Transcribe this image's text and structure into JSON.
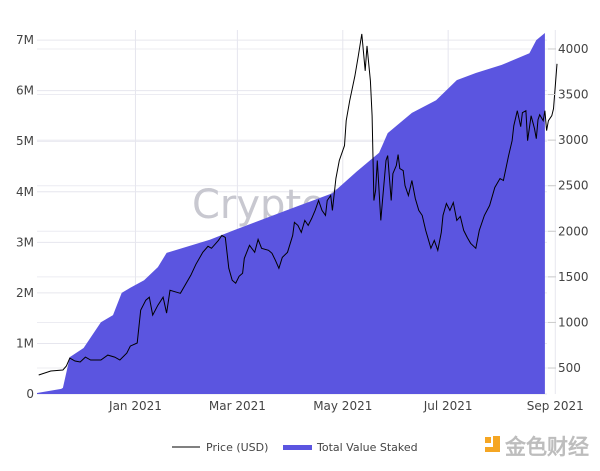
{
  "chart_data": {
    "type": "area+line",
    "title": "",
    "xlabel": "",
    "ylabel_left": "",
    "ylabel_right": "",
    "x_range": [
      "2020-11-05",
      "2021-09-02"
    ],
    "x_ticks": [
      {
        "date": "2021-01-01",
        "label": "Jan 2021"
      },
      {
        "date": "2021-03-01",
        "label": "Mar 2021"
      },
      {
        "date": "2021-05-01",
        "label": "May 2021"
      },
      {
        "date": "2021-07-01",
        "label": "Jul 2021"
      },
      {
        "date": "2021-09-01",
        "label": "Sep 2021"
      }
    ],
    "y_left": {
      "range": [
        0,
        7200000
      ],
      "ticks": [
        0,
        1000000,
        2000000,
        3000000,
        4000000,
        5000000,
        6000000,
        7000000
      ],
      "tick_labels": [
        "0",
        "1M",
        "2M",
        "3M",
        "4M",
        "5M",
        "6M",
        "7M"
      ]
    },
    "y_right": {
      "range": [
        215,
        4208
      ],
      "ticks": [
        500,
        1000,
        1500,
        2000,
        2500,
        3000,
        3500,
        4000
      ],
      "tick_labels": [
        "500",
        "1000",
        "1500",
        "2000",
        "2500",
        "3000",
        "3500",
        "4000"
      ]
    },
    "grid": true,
    "legend_position": "bottom",
    "series": [
      {
        "name": "Price (USD)",
        "type": "line",
        "axis": "right",
        "color": "#000000",
        "points": [
          [
            "2020-11-06",
            423
          ],
          [
            "2020-11-13",
            467
          ],
          [
            "2020-11-20",
            478
          ],
          [
            "2020-11-22",
            522
          ],
          [
            "2020-11-24",
            609
          ],
          [
            "2020-11-27",
            577
          ],
          [
            "2020-11-30",
            566
          ],
          [
            "2020-12-03",
            620
          ],
          [
            "2020-12-06",
            588
          ],
          [
            "2020-12-12",
            588
          ],
          [
            "2020-12-16",
            642
          ],
          [
            "2020-12-20",
            620
          ],
          [
            "2020-12-23",
            588
          ],
          [
            "2020-12-27",
            664
          ],
          [
            "2020-12-29",
            741
          ],
          [
            "2021-01-02",
            774
          ],
          [
            "2021-01-04",
            1135
          ],
          [
            "2021-01-07",
            1244
          ],
          [
            "2021-01-09",
            1277
          ],
          [
            "2021-01-11",
            1080
          ],
          [
            "2021-01-14",
            1189
          ],
          [
            "2021-01-17",
            1277
          ],
          [
            "2021-01-19",
            1102
          ],
          [
            "2021-01-21",
            1353
          ],
          [
            "2021-01-25",
            1331
          ],
          [
            "2021-01-27",
            1320
          ],
          [
            "2021-02-02",
            1517
          ],
          [
            "2021-02-05",
            1638
          ],
          [
            "2021-02-09",
            1769
          ],
          [
            "2021-02-12",
            1835
          ],
          [
            "2021-02-14",
            1813
          ],
          [
            "2021-02-18",
            1900
          ],
          [
            "2021-02-20",
            1955
          ],
          [
            "2021-02-22",
            1933
          ],
          [
            "2021-02-24",
            1594
          ],
          [
            "2021-02-26",
            1463
          ],
          [
            "2021-02-28",
            1430
          ],
          [
            "2021-03-02",
            1506
          ],
          [
            "2021-03-04",
            1539
          ],
          [
            "2021-03-05",
            1703
          ],
          [
            "2021-03-08",
            1846
          ],
          [
            "2021-03-11",
            1769
          ],
          [
            "2021-03-13",
            1911
          ],
          [
            "2021-03-15",
            1813
          ],
          [
            "2021-03-19",
            1791
          ],
          [
            "2021-03-21",
            1758
          ],
          [
            "2021-03-23",
            1682
          ],
          [
            "2021-03-25",
            1594
          ],
          [
            "2021-03-27",
            1714
          ],
          [
            "2021-03-30",
            1769
          ],
          [
            "2021-04-02",
            1955
          ],
          [
            "2021-04-03",
            2097
          ],
          [
            "2021-04-05",
            2064
          ],
          [
            "2021-04-07",
            1988
          ],
          [
            "2021-04-09",
            2119
          ],
          [
            "2021-04-11",
            2064
          ],
          [
            "2021-04-13",
            2141
          ],
          [
            "2021-04-15",
            2229
          ],
          [
            "2021-04-17",
            2338
          ],
          [
            "2021-04-19",
            2229
          ],
          [
            "2021-04-21",
            2174
          ],
          [
            "2021-04-22",
            2338
          ],
          [
            "2021-04-24",
            2393
          ],
          [
            "2021-04-25",
            2229
          ],
          [
            "2021-04-27",
            2579
          ],
          [
            "2021-04-29",
            2776
          ],
          [
            "2021-05-02",
            2940
          ],
          [
            "2021-05-03",
            3213
          ],
          [
            "2021-05-05",
            3432
          ],
          [
            "2021-05-08",
            3705
          ],
          [
            "2021-05-10",
            3924
          ],
          [
            "2021-05-12",
            4165
          ],
          [
            "2021-05-14",
            3760
          ],
          [
            "2021-05-15",
            4034
          ],
          [
            "2021-05-17",
            3651
          ],
          [
            "2021-05-18",
            3268
          ],
          [
            "2021-05-19",
            2338
          ],
          [
            "2021-05-20",
            2447
          ],
          [
            "2021-05-21",
            2776
          ],
          [
            "2021-05-23",
            2119
          ],
          [
            "2021-05-24",
            2338
          ],
          [
            "2021-05-26",
            2776
          ],
          [
            "2021-05-27",
            2830
          ],
          [
            "2021-05-29",
            2338
          ],
          [
            "2021-05-30",
            2633
          ],
          [
            "2021-06-01",
            2721
          ],
          [
            "2021-06-02",
            2841
          ],
          [
            "2021-06-03",
            2688
          ],
          [
            "2021-06-05",
            2666
          ],
          [
            "2021-06-06",
            2502
          ],
          [
            "2021-06-08",
            2393
          ],
          [
            "2021-06-10",
            2557
          ],
          [
            "2021-06-12",
            2360
          ],
          [
            "2021-06-14",
            2229
          ],
          [
            "2021-06-16",
            2174
          ],
          [
            "2021-06-18",
            2010
          ],
          [
            "2021-06-20",
            1878
          ],
          [
            "2021-06-21",
            1813
          ],
          [
            "2021-06-23",
            1900
          ],
          [
            "2021-06-25",
            1791
          ],
          [
            "2021-06-27",
            1988
          ],
          [
            "2021-06-28",
            2174
          ],
          [
            "2021-06-30",
            2305
          ],
          [
            "2021-07-02",
            2229
          ],
          [
            "2021-07-04",
            2316
          ],
          [
            "2021-07-06",
            2119
          ],
          [
            "2021-07-08",
            2163
          ],
          [
            "2021-07-10",
            2010
          ],
          [
            "2021-07-12",
            1933
          ],
          [
            "2021-07-14",
            1868
          ],
          [
            "2021-07-17",
            1813
          ],
          [
            "2021-07-19",
            2010
          ],
          [
            "2021-07-22",
            2174
          ],
          [
            "2021-07-25",
            2283
          ],
          [
            "2021-07-28",
            2480
          ],
          [
            "2021-07-31",
            2579
          ],
          [
            "2021-08-02",
            2557
          ],
          [
            "2021-08-05",
            2830
          ],
          [
            "2021-08-07",
            2994
          ],
          [
            "2021-08-08",
            3158
          ],
          [
            "2021-08-10",
            3323
          ],
          [
            "2021-08-12",
            3147
          ],
          [
            "2021-08-13",
            3301
          ],
          [
            "2021-08-15",
            3323
          ],
          [
            "2021-08-16",
            2994
          ],
          [
            "2021-08-18",
            3268
          ],
          [
            "2021-08-20",
            3126
          ],
          [
            "2021-08-21",
            3016
          ],
          [
            "2021-08-22",
            3224
          ],
          [
            "2021-08-23",
            3279
          ],
          [
            "2021-08-25",
            3213
          ],
          [
            "2021-08-26",
            3323
          ],
          [
            "2021-08-27",
            3104
          ],
          [
            "2021-08-28",
            3213
          ],
          [
            "2021-08-30",
            3268
          ],
          [
            "2021-08-31",
            3344
          ],
          [
            "2021-09-01",
            3596
          ],
          [
            "2021-09-02",
            3837
          ]
        ]
      },
      {
        "name": "Total Value Staked",
        "type": "area",
        "axis": "left",
        "color": "#5b55e0",
        "points": [
          [
            "2020-11-05",
            20000
          ],
          [
            "2020-11-19",
            100000
          ],
          [
            "2020-11-20",
            120000
          ],
          [
            "2020-11-24",
            730000
          ],
          [
            "2020-12-02",
            910000
          ],
          [
            "2020-12-12",
            1420000
          ],
          [
            "2020-12-19",
            1560000
          ],
          [
            "2020-12-24",
            2000000
          ],
          [
            "2020-12-29",
            2100000
          ],
          [
            "2021-01-06",
            2250000
          ],
          [
            "2021-01-14",
            2510000
          ],
          [
            "2021-01-19",
            2790000
          ],
          [
            "2021-02-13",
            3050000
          ],
          [
            "2021-02-27",
            3240000
          ],
          [
            "2021-04-02",
            3680000
          ],
          [
            "2021-04-25",
            3970000
          ],
          [
            "2021-05-09",
            4400000
          ],
          [
            "2021-05-22",
            4770000
          ],
          [
            "2021-05-27",
            5160000
          ],
          [
            "2021-06-10",
            5560000
          ],
          [
            "2021-06-24",
            5810000
          ],
          [
            "2021-07-06",
            6210000
          ],
          [
            "2021-07-17",
            6350000
          ],
          [
            "2021-08-01",
            6510000
          ],
          [
            "2021-08-17",
            6740000
          ],
          [
            "2021-08-21",
            7000000
          ],
          [
            "2021-08-26",
            7140000
          ]
        ]
      }
    ]
  },
  "legend": {
    "price_label": "Price (USD)",
    "staked_label": "Total Value Staked"
  },
  "watermark": "CryptoQuant",
  "logo": {
    "text": "金色财经",
    "accent": "#f5a623"
  }
}
